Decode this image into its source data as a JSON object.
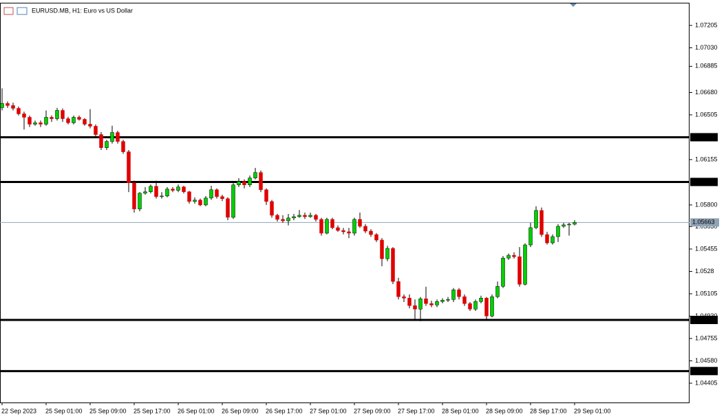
{
  "chart_data": {
    "type": "candlestick",
    "title": "EURUSD.MB, H1:  Euro vs US Dollar",
    "categories": [
      "22 Sep 2023",
      null,
      null,
      null,
      null,
      null,
      null,
      null,
      "25 Sep 01:00",
      null,
      null,
      null,
      null,
      null,
      null,
      null,
      "25 Sep 09:00",
      null,
      null,
      null,
      null,
      null,
      null,
      null,
      "25 Sep 17:00",
      null,
      null,
      null,
      null,
      null,
      null,
      null,
      "26 Sep 01:00",
      null,
      null,
      null,
      null,
      null,
      null,
      null,
      "26 Sep 09:00",
      null,
      null,
      null,
      null,
      null,
      null,
      null,
      "26 Sep 17:00",
      null,
      null,
      null,
      null,
      null,
      null,
      null,
      "27 Sep 01:00",
      null,
      null,
      null,
      null,
      null,
      null,
      null,
      "27 Sep 09:00",
      null,
      null,
      null,
      null,
      null,
      null,
      null,
      "27 Sep 17:00",
      null,
      null,
      null,
      null,
      null,
      null,
      null,
      "28 Sep 01:00",
      null,
      null,
      null,
      null,
      null,
      null,
      null,
      "28 Sep 09:00",
      null,
      null,
      null,
      null,
      null,
      null,
      null,
      "28 Sep 17:00",
      null,
      null,
      null,
      null,
      null,
      null,
      null,
      "29 Sep 01:00"
    ],
    "open": [
      1.06562,
      1.06594,
      1.06578,
      1.06556,
      1.06513,
      1.06486,
      1.06432,
      1.06443,
      1.06432,
      1.06486,
      1.06475,
      1.0654,
      1.06475,
      1.06443,
      1.06486,
      1.0647,
      1.06432,
      1.06416,
      1.06351,
      1.06248,
      1.06297,
      1.06367,
      1.06297,
      1.06216,
      1.05973,
      1.05768,
      1.05892,
      1.05903,
      1.05946,
      1.05865,
      1.0587,
      1.05924,
      1.05914,
      1.05941,
      1.05903,
      1.05827,
      1.05838,
      1.058,
      1.05854,
      1.05919,
      1.05865,
      1.05849,
      1.05703,
      1.05957,
      1.05984,
      1.05957,
      1.06011,
      1.06054,
      1.05919,
      1.05827,
      1.05719,
      1.05687,
      1.05676,
      1.05698,
      1.05708,
      1.05719,
      1.05708,
      1.05719,
      1.05687,
      1.05579,
      1.05687,
      1.05622,
      1.056,
      1.0559,
      1.05579,
      1.05687,
      1.05633,
      1.05595,
      1.05568,
      1.05525,
      1.05379,
      1.0546,
      1.05201,
      1.05082,
      1.05071,
      1.05012,
      1.04985,
      1.05066,
      1.05028,
      1.05017,
      1.05044,
      1.05055,
      1.0506,
      1.05136,
      1.05082,
      1.05028,
      1.04985,
      1.05044,
      1.05071,
      1.04931,
      1.05082,
      1.05163,
      1.05384,
      1.05406,
      1.05395,
      1.05179,
      1.05487,
      1.05622,
      1.05757,
      1.05568,
      1.05503,
      1.05552,
      1.05633,
      1.05644,
      1.05649
    ],
    "high": [
      1.06713,
      1.0661,
      1.066,
      1.0657,
      1.0653,
      1.065,
      1.0646,
      1.0646,
      1.0654,
      1.065,
      1.0656,
      1.06555,
      1.0649,
      1.065,
      1.065,
      1.0648,
      1.0655,
      1.0643,
      1.0637,
      1.0631,
      1.0642,
      1.0638,
      1.0631,
      1.0623,
      1.0599,
      1.059,
      1.0594,
      1.0596,
      1.0599,
      1.059,
      1.0594,
      1.0594,
      1.0596,
      1.0595,
      1.0591,
      1.0586,
      1.0585,
      1.0587,
      1.0595,
      1.0593,
      1.0588,
      1.0586,
      1.0597,
      1.0601,
      1.06,
      1.0603,
      1.0609,
      1.0607,
      1.0593,
      1.0584,
      1.0573,
      1.0572,
      1.0573,
      1.0573,
      1.0576,
      1.0574,
      1.0574,
      1.0573,
      1.057,
      1.057,
      1.057,
      1.0564,
      1.0562,
      1.0562,
      1.057,
      1.0574,
      1.0565,
      1.0561,
      1.0558,
      1.0554,
      1.0548,
      1.0547,
      1.0523,
      1.051,
      1.051,
      1.0506,
      1.0508,
      1.0516,
      1.0505,
      1.0506,
      1.0507,
      1.0508,
      1.0515,
      1.0515,
      1.051,
      1.0504,
      1.0506,
      1.0509,
      1.0508,
      1.051,
      1.052,
      1.054,
      1.0542,
      1.0543,
      1.0547,
      1.055,
      1.0566,
      1.0579,
      1.0578,
      1.0559,
      1.0557,
      1.0565,
      1.0566,
      1.0566,
      1.0568
    ],
    "low": [
      1.0654,
      1.0656,
      1.0654,
      1.065,
      1.0639,
      1.0641,
      1.0642,
      1.0641,
      1.0642,
      1.0645,
      1.0646,
      1.0645,
      1.0643,
      1.0643,
      1.0646,
      1.0642,
      1.064,
      1.0633,
      1.0623,
      1.0623,
      1.0628,
      1.0628,
      1.062,
      1.059,
      1.0574,
      1.0575,
      1.0588,
      1.0589,
      1.0585,
      1.0585,
      1.0586,
      1.059,
      1.059,
      1.0589,
      1.0581,
      1.0581,
      1.0579,
      1.0579,
      1.0584,
      1.0585,
      1.0583,
      1.0568,
      1.0569,
      1.0594,
      1.0593,
      1.0594,
      1.06,
      1.059,
      1.058,
      1.057,
      1.0567,
      1.0566,
      1.0564,
      1.0568,
      1.057,
      1.0569,
      1.057,
      1.0567,
      1.0556,
      1.0557,
      1.0561,
      1.0559,
      1.0557,
      1.0554,
      1.0556,
      1.0562,
      1.0558,
      1.0555,
      1.0551,
      1.0532,
      1.0536,
      1.0518,
      1.0506,
      1.0504,
      1.0499,
      1.049,
      1.0489,
      1.0501,
      1.05,
      1.05,
      1.0503,
      1.0504,
      1.0504,
      1.0506,
      1.0501,
      1.0497,
      1.0497,
      1.0503,
      1.049,
      1.0492,
      1.0507,
      1.0515,
      1.0537,
      1.0538,
      1.0516,
      1.0517,
      1.0547,
      1.0561,
      1.0555,
      1.0549,
      1.0549,
      1.0551,
      1.0562,
      1.0556,
      1.0564
    ],
    "close": [
      1.06594,
      1.06578,
      1.06556,
      1.06513,
      1.06486,
      1.06432,
      1.06443,
      1.06432,
      1.06486,
      1.06475,
      1.0654,
      1.06475,
      1.06443,
      1.06486,
      1.0647,
      1.06432,
      1.06416,
      1.06351,
      1.06248,
      1.06297,
      1.06367,
      1.06297,
      1.06216,
      1.05973,
      1.05768,
      1.05892,
      1.05903,
      1.05946,
      1.05865,
      1.0587,
      1.05924,
      1.05914,
      1.05941,
      1.05903,
      1.05827,
      1.05838,
      1.058,
      1.05854,
      1.05919,
      1.05865,
      1.05849,
      1.05703,
      1.05957,
      1.05984,
      1.05957,
      1.06011,
      1.06054,
      1.05919,
      1.05827,
      1.05719,
      1.05687,
      1.05676,
      1.05698,
      1.05708,
      1.05719,
      1.05708,
      1.05719,
      1.05687,
      1.05579,
      1.05687,
      1.05622,
      1.056,
      1.0559,
      1.05579,
      1.05687,
      1.05633,
      1.05595,
      1.05568,
      1.05525,
      1.05379,
      1.0546,
      1.05201,
      1.05082,
      1.05071,
      1.05012,
      1.04985,
      1.05066,
      1.05028,
      1.05017,
      1.05044,
      1.05055,
      1.0506,
      1.05136,
      1.05082,
      1.05028,
      1.04985,
      1.05044,
      1.05071,
      1.04931,
      1.05082,
      1.05163,
      1.05384,
      1.05406,
      1.05395,
      1.05179,
      1.05487,
      1.05622,
      1.05757,
      1.05568,
      1.05503,
      1.05552,
      1.05633,
      1.05644,
      1.05649,
      1.05663
    ],
    "up_color": "#00d000",
    "down_color": "#e00000",
    "ylim": [
      1.04254,
      1.07377
    ],
    "yticks": [
      1.07205,
      {
        "value": 1.0703,
        "label": "1.07030"
      },
      1.06885,
      {
        "value": 1.0668,
        "label": "1.06680"
      },
      1.06505,
      1.06155,
      {
        "value": 1.058,
        "label": "1.05800"
      },
      {
        "value": 1.0563,
        "label": "1.05630"
      },
      1.05455,
      1.0528,
      1.05105,
      {
        "value": 1.0493,
        "label": "1.04930"
      },
      1.04755,
      {
        "value": 1.0458,
        "label": "1.04580"
      },
      1.04405
    ],
    "levels": [
      {
        "value": 1.0633,
        "label": "1.06330"
      },
      {
        "value": 1.0598,
        "label": "1.05980"
      },
      {
        "value": 1.049,
        "label": "1.04900"
      },
      {
        "value": 1.045,
        "label": "1.04500"
      }
    ],
    "current_price": 1.05663,
    "grid": false
  }
}
